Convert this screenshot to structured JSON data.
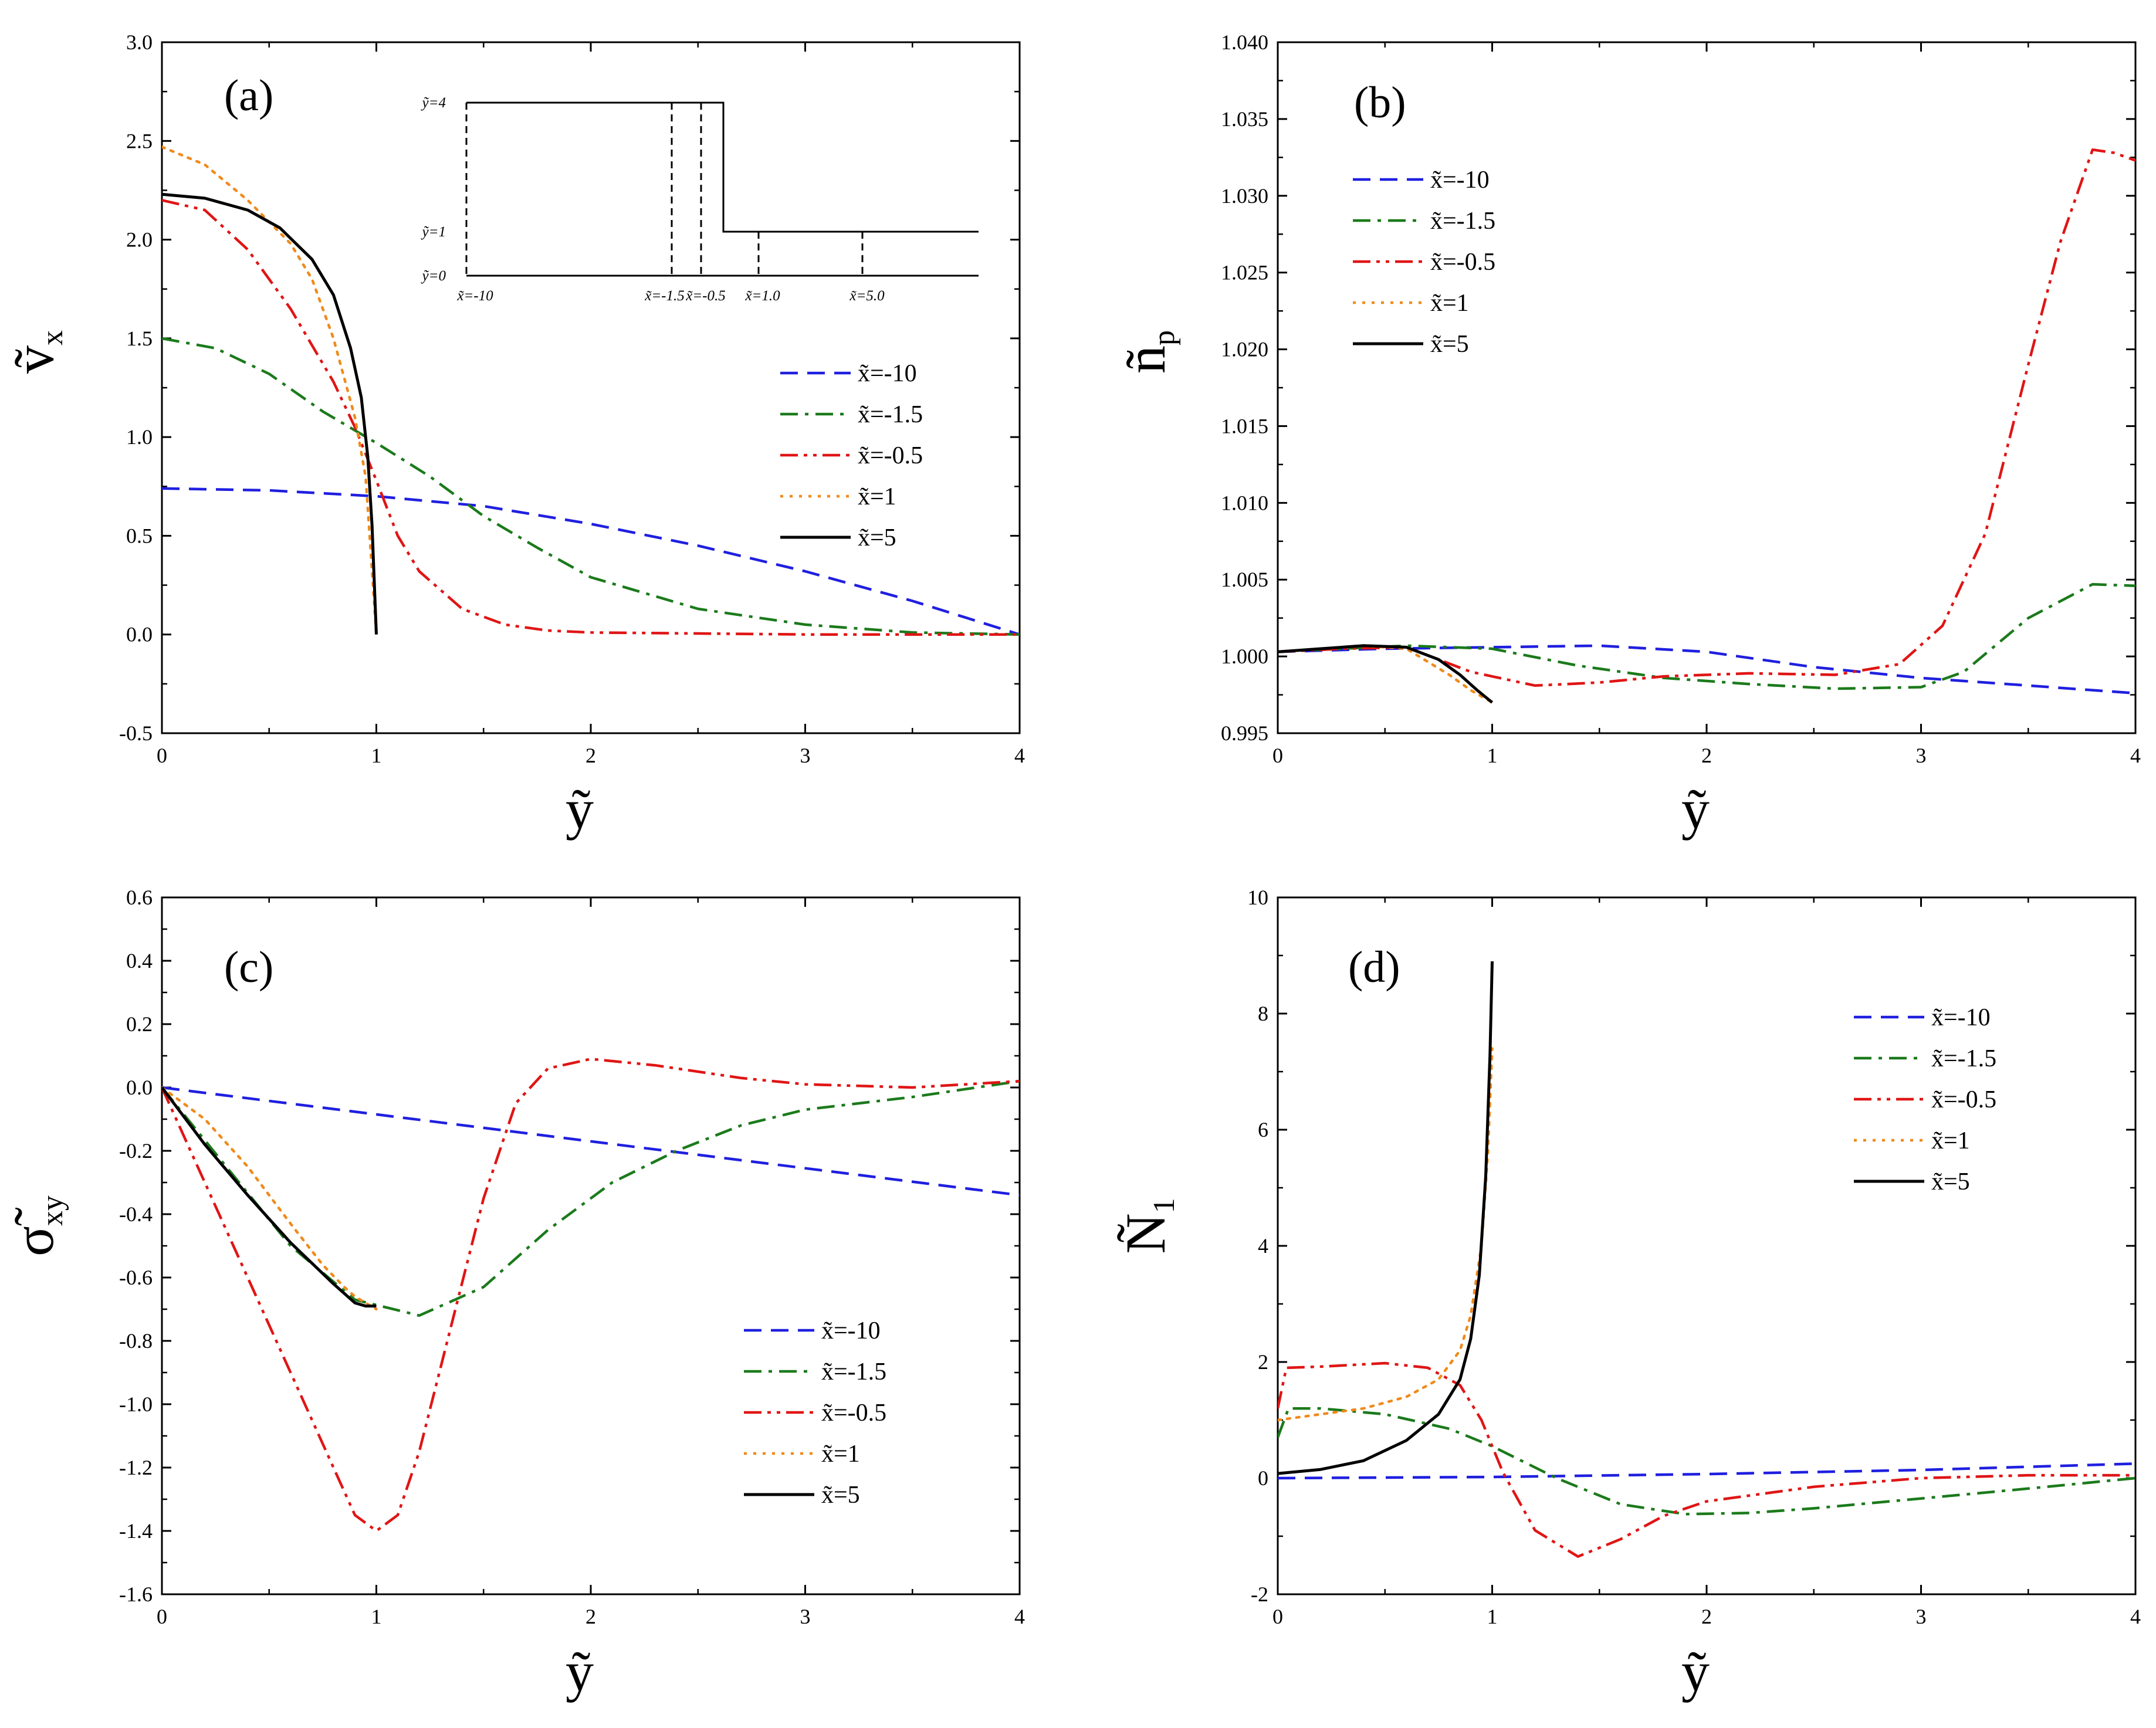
{
  "chart_data": [
    {
      "type": "line",
      "panel_label": "(a)",
      "xlabel": "ỹ",
      "ylabel": "ṽ",
      "ylabel_sub": "x",
      "xlim": [
        0,
        4
      ],
      "ylim": [
        -0.5,
        3.0
      ],
      "xticks": [
        0,
        1,
        2,
        3,
        4
      ],
      "xtick_labels": [
        "0",
        "1",
        "2",
        "3",
        "4"
      ],
      "yticks": [
        -0.5,
        0,
        0.5,
        1.0,
        1.5,
        2.0,
        2.5,
        3.0
      ],
      "ytick_labels": [
        "-0.5",
        "0.0",
        "0.5",
        "1.0",
        "1.5",
        "2.0",
        "2.5",
        "3.0"
      ],
      "legend_position": "right",
      "series": [
        {
          "name": "x̃=-10",
          "color": "#1f1fe0",
          "dash": "dash",
          "x": [
            0,
            0.5,
            1,
            1.5,
            2,
            2.5,
            3,
            3.5,
            4
          ],
          "y": [
            0.74,
            0.73,
            0.7,
            0.65,
            0.56,
            0.45,
            0.32,
            0.17,
            0.0
          ]
        },
        {
          "name": "x̃=-1.5",
          "color": "#1b7a1b",
          "dash": "dashdot",
          "x": [
            0,
            0.25,
            0.5,
            0.75,
            1,
            1.25,
            1.5,
            1.75,
            2,
            2.5,
            3,
            3.5,
            4
          ],
          "y": [
            1.5,
            1.45,
            1.32,
            1.13,
            0.97,
            0.8,
            0.6,
            0.44,
            0.29,
            0.13,
            0.05,
            0.01,
            0.0
          ]
        },
        {
          "name": "x̃=-0.5",
          "color": "#e01515",
          "dash": "dashdotdot",
          "x": [
            0,
            0.2,
            0.4,
            0.6,
            0.8,
            0.9,
            1.0,
            1.1,
            1.2,
            1.4,
            1.6,
            1.8,
            2.0,
            3,
            4
          ],
          "y": [
            2.2,
            2.15,
            1.95,
            1.65,
            1.28,
            1.05,
            0.78,
            0.5,
            0.32,
            0.13,
            0.05,
            0.02,
            0.01,
            0.0,
            0.0
          ]
        },
        {
          "name": "x̃=1",
          "color": "#f08a1c",
          "dash": "dot",
          "x": [
            0,
            0.2,
            0.4,
            0.6,
            0.7,
            0.8,
            0.85,
            0.9,
            0.95,
            1.0
          ],
          "y": [
            2.47,
            2.38,
            2.2,
            1.98,
            1.8,
            1.5,
            1.3,
            1.1,
            0.8,
            0.0
          ]
        },
        {
          "name": "x̃=5",
          "color": "#000000",
          "dash": "solid",
          "x": [
            0,
            0.2,
            0.4,
            0.55,
            0.7,
            0.8,
            0.88,
            0.93,
            0.96,
            0.98,
            1.0
          ],
          "y": [
            2.23,
            2.21,
            2.15,
            2.06,
            1.9,
            1.72,
            1.45,
            1.2,
            0.9,
            0.55,
            0.0
          ]
        }
      ],
      "inset": {
        "y_labels": [
          "ỹ=4",
          "ỹ=1",
          "ỹ=0"
        ],
        "x_labels": [
          "x̃=-10",
          "x̃=-1.5",
          "x̃=-0.5",
          "x̃=1.0",
          "x̃=5.0"
        ]
      }
    },
    {
      "type": "line",
      "panel_label": "(b)",
      "xlabel": "ỹ",
      "ylabel": "ñ",
      "ylabel_sub": "p",
      "xlim": [
        0,
        4
      ],
      "ylim": [
        0.995,
        1.04
      ],
      "xticks": [
        0,
        1,
        2,
        3,
        4
      ],
      "xtick_labels": [
        "0",
        "1",
        "2",
        "3",
        "4"
      ],
      "yticks": [
        0.995,
        1.0,
        1.005,
        1.01,
        1.015,
        1.02,
        1.025,
        1.03,
        1.035,
        1.04
      ],
      "ytick_labels": [
        "0.995",
        "1.000",
        "1.005",
        "1.010",
        "1.015",
        "1.020",
        "1.025",
        "1.030",
        "1.035",
        "1.040"
      ],
      "legend_position": "top-left",
      "series": [
        {
          "name": "x̃=-10",
          "color": "#1f1fe0",
          "dash": "dash",
          "x": [
            0,
            0.5,
            1,
            1.5,
            2,
            2.5,
            3,
            3.5,
            4
          ],
          "y": [
            1.0003,
            1.0005,
            1.0006,
            1.0007,
            1.0003,
            0.9993,
            0.9986,
            0.9981,
            0.9976
          ]
        },
        {
          "name": "x̃=-1.5",
          "color": "#1b7a1b",
          "dash": "dashdot",
          "x": [
            0,
            0.3,
            0.6,
            1.0,
            1.4,
            1.8,
            2.2,
            2.6,
            3.0,
            3.2,
            3.5,
            3.8,
            4.0
          ],
          "y": [
            1.0003,
            1.0005,
            1.0007,
            1.0005,
            0.9994,
            0.9986,
            0.9982,
            0.9979,
            0.998,
            0.999,
            1.0025,
            1.0047,
            1.0046
          ]
        },
        {
          "name": "x̃=-0.5",
          "color": "#e01515",
          "dash": "dashdotdot",
          "x": [
            0,
            0.3,
            0.6,
            0.9,
            1.2,
            1.5,
            1.8,
            2.2,
            2.6,
            2.9,
            3.1,
            3.3,
            3.5,
            3.65,
            3.8,
            3.9,
            4.0
          ],
          "y": [
            1.0003,
            1.0005,
            1.0006,
            0.999,
            0.9981,
            0.9983,
            0.9987,
            0.9989,
            0.9988,
            0.9995,
            1.002,
            1.008,
            1.019,
            1.027,
            1.033,
            1.0328,
            1.0323
          ]
        },
        {
          "name": "x̃=1",
          "color": "#f08a1c",
          "dash": "dot",
          "x": [
            0,
            0.2,
            0.4,
            0.6,
            0.8,
            0.9,
            1.0
          ],
          "y": [
            1.0003,
            1.0005,
            1.0007,
            1.0005,
            0.9988,
            0.9978,
            0.997
          ]
        },
        {
          "name": "x̃=5",
          "color": "#000000",
          "dash": "solid",
          "x": [
            0,
            0.2,
            0.4,
            0.6,
            0.75,
            0.85,
            0.93,
            1.0
          ],
          "y": [
            1.0003,
            1.0005,
            1.0007,
            1.0006,
            0.9998,
            0.9988,
            0.9978,
            0.997
          ]
        }
      ]
    },
    {
      "type": "line",
      "panel_label": "(c)",
      "xlabel": "ỹ",
      "ylabel": "σ̃",
      "ylabel_sub": "xy",
      "xlim": [
        0,
        4
      ],
      "ylim": [
        -1.6,
        0.6
      ],
      "xticks": [
        0,
        1,
        2,
        3,
        4
      ],
      "xtick_labels": [
        "0",
        "1",
        "2",
        "3",
        "4"
      ],
      "yticks": [
        -1.6,
        -1.4,
        -1.2,
        -1.0,
        -0.8,
        -0.6,
        -0.4,
        -0.2,
        0.0,
        0.2,
        0.4,
        0.6
      ],
      "ytick_labels": [
        "-1.6",
        "-1.4",
        "-1.2",
        "-1.0",
        "-0.8",
        "-0.6",
        "-0.4",
        "-0.2",
        "0.0",
        "0.2",
        "0.4",
        "0.6"
      ],
      "legend_position": "bottom-right",
      "series": [
        {
          "name": "x̃=-10",
          "color": "#1f1fe0",
          "dash": "dash",
          "x": [
            0,
            1,
            2,
            3,
            4
          ],
          "y": [
            0.0,
            -0.085,
            -0.17,
            -0.255,
            -0.34
          ]
        },
        {
          "name": "x̃=-1.5",
          "color": "#1b7a1b",
          "dash": "dashdot",
          "x": [
            0,
            0.3,
            0.6,
            0.9,
            1.2,
            1.5,
            1.8,
            2.1,
            2.4,
            2.7,
            3.0,
            3.5,
            4.0
          ],
          "y": [
            0.0,
            -0.25,
            -0.5,
            -0.67,
            -0.72,
            -0.63,
            -0.45,
            -0.3,
            -0.2,
            -0.12,
            -0.07,
            -0.03,
            0.02
          ]
        },
        {
          "name": "x̃=-0.5",
          "color": "#e01515",
          "dash": "dashdotdot",
          "x": [
            0,
            0.2,
            0.4,
            0.6,
            0.8,
            0.9,
            1.0,
            1.1,
            1.2,
            1.35,
            1.5,
            1.65,
            1.8,
            2.0,
            2.3,
            2.7,
            3.0,
            3.5,
            4.0
          ],
          "y": [
            0.0,
            -0.3,
            -0.6,
            -0.9,
            -1.2,
            -1.35,
            -1.4,
            -1.35,
            -1.15,
            -0.75,
            -0.35,
            -0.05,
            0.06,
            0.09,
            0.07,
            0.03,
            0.01,
            0.0,
            0.02
          ]
        },
        {
          "name": "x̃=1",
          "color": "#f08a1c",
          "dash": "dot",
          "x": [
            0,
            0.2,
            0.4,
            0.6,
            0.75,
            0.85,
            0.9,
            0.95,
            1.0
          ],
          "y": [
            0.0,
            -0.1,
            -0.25,
            -0.43,
            -0.56,
            -0.63,
            -0.66,
            -0.68,
            -0.7
          ]
        },
        {
          "name": "x̃=5",
          "color": "#000000",
          "dash": "solid",
          "x": [
            0,
            0.2,
            0.4,
            0.6,
            0.8,
            0.9,
            0.95,
            1.0
          ],
          "y": [
            0.0,
            -0.18,
            -0.34,
            -0.49,
            -0.62,
            -0.68,
            -0.69,
            -0.69
          ]
        }
      ]
    },
    {
      "type": "line",
      "panel_label": "(d)",
      "xlabel": "ỹ",
      "ylabel": "Ñ",
      "ylabel_sub": "1",
      "xlim": [
        0,
        4
      ],
      "ylim": [
        -2,
        10
      ],
      "xticks": [
        0,
        1,
        2,
        3,
        4
      ],
      "xtick_labels": [
        "0",
        "1",
        "2",
        "3",
        "4"
      ],
      "yticks": [
        -2,
        0,
        2,
        4,
        6,
        8,
        10
      ],
      "ytick_labels": [
        "-2",
        "0",
        "2",
        "4",
        "6",
        "8",
        "10"
      ],
      "legend_position": "top-right",
      "series": [
        {
          "name": "x̃=-10",
          "color": "#1f1fe0",
          "dash": "dash",
          "x": [
            0,
            1,
            2,
            3,
            4
          ],
          "y": [
            0.0,
            0.02,
            0.07,
            0.14,
            0.25
          ]
        },
        {
          "name": "x̃=-1.5",
          "color": "#1b7a1b",
          "dash": "dashdot",
          "x": [
            0,
            0.05,
            0.2,
            0.5,
            0.8,
            1.0,
            1.3,
            1.6,
            1.9,
            2.2,
            2.5,
            3.0,
            3.5,
            4.0
          ],
          "y": [
            0.7,
            1.2,
            1.2,
            1.1,
            0.85,
            0.55,
            0.0,
            -0.45,
            -0.62,
            -0.6,
            -0.52,
            -0.35,
            -0.18,
            0.0
          ]
        },
        {
          "name": "x̃=-0.5",
          "color": "#e01515",
          "dash": "dashdotdot",
          "x": [
            0,
            0.04,
            0.2,
            0.5,
            0.7,
            0.85,
            0.95,
            1.05,
            1.2,
            1.4,
            1.6,
            1.8,
            2.0,
            2.5,
            3.0,
            3.5,
            4.0
          ],
          "y": [
            1.2,
            1.9,
            1.92,
            1.98,
            1.9,
            1.6,
            1.0,
            0.1,
            -0.9,
            -1.35,
            -1.05,
            -0.65,
            -0.4,
            -0.15,
            0.0,
            0.05,
            0.05
          ]
        },
        {
          "name": "x̃=1",
          "color": "#f08a1c",
          "dash": "dot",
          "x": [
            0,
            0.2,
            0.4,
            0.6,
            0.75,
            0.85,
            0.9,
            0.95,
            0.98,
            1.0
          ],
          "y": [
            1.0,
            1.1,
            1.2,
            1.4,
            1.7,
            2.2,
            2.8,
            4.0,
            5.6,
            7.4
          ]
        },
        {
          "name": "x̃=5",
          "color": "#000000",
          "dash": "solid",
          "x": [
            0,
            0.2,
            0.4,
            0.6,
            0.75,
            0.85,
            0.9,
            0.94,
            0.97,
            0.99,
            1.0
          ],
          "y": [
            0.08,
            0.15,
            0.3,
            0.65,
            1.1,
            1.7,
            2.4,
            3.5,
            5.2,
            7.3,
            8.9
          ]
        }
      ]
    }
  ]
}
